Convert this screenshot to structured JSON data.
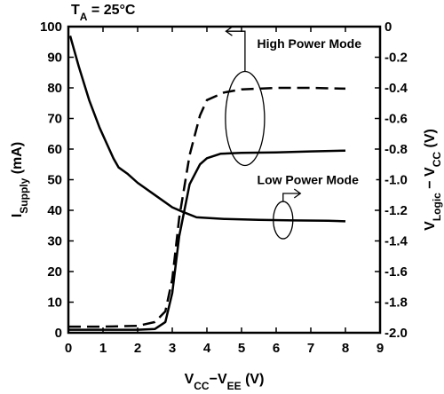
{
  "chart_data": {
    "type": "line",
    "condition": {
      "prefix": "T",
      "sub": "A",
      "suffix": " = 25°C"
    },
    "xlabel": {
      "main": "V",
      "sub1": "CC",
      "mid": "−V",
      "sub2": "EE",
      "unit": " (V)"
    },
    "ylabel_left": {
      "main": "I",
      "sub": "Supply",
      "unit": " (mA)"
    },
    "ylabel_right": {
      "main": "V",
      "sub1": "Logic",
      "mid": " − V",
      "sub2": "CC",
      "unit": " (V)"
    },
    "xlim": [
      0,
      9
    ],
    "ylim_left": [
      0,
      100
    ],
    "ylim_right": [
      -2.0,
      0
    ],
    "x_ticks": [
      "0",
      "1",
      "2",
      "3",
      "4",
      "5",
      "6",
      "7",
      "8",
      "9"
    ],
    "y_left_ticks": [
      "0",
      "10",
      "20",
      "30",
      "40",
      "50",
      "60",
      "70",
      "80",
      "90",
      "100"
    ],
    "y_right_ticks": [
      "-2.0",
      "-1.8",
      "-1.6",
      "-1.4",
      "-1.2",
      "-1.0",
      "-0.8",
      "-0.6",
      "-0.4",
      "-0.2",
      "0"
    ],
    "annotations": {
      "high": "High Power Mode",
      "low": "Low Power Mode"
    },
    "series": [
      {
        "axis": "left",
        "style": "solid",
        "x": [
          0.05,
          0.3,
          0.6,
          0.9,
          1.1,
          1.3,
          1.45,
          1.7,
          2.0,
          2.5,
          3.0,
          3.3,
          3.7,
          4.5,
          5.5,
          6.5,
          7.5,
          8.0
        ],
        "y": [
          97,
          87,
          76,
          67,
          62,
          57,
          54,
          52,
          49,
          45,
          41,
          39.5,
          37.7,
          37.2,
          36.9,
          36.7,
          36.6,
          36.4
        ]
      },
      {
        "axis": "right",
        "style": "dashed",
        "x": [
          0,
          1.0,
          2.0,
          2.5,
          2.8,
          3.0,
          3.2,
          3.5,
          3.8,
          4.0,
          4.5,
          5.0,
          5.5,
          6.0,
          7.0,
          8.0
        ],
        "y": [
          -1.96,
          -1.96,
          -1.955,
          -1.93,
          -1.86,
          -1.65,
          -1.25,
          -0.84,
          -0.58,
          -0.48,
          -0.43,
          -0.41,
          -0.405,
          -0.4,
          -0.4,
          -0.405
        ]
      },
      {
        "axis": "right",
        "style": "solid",
        "x": [
          0,
          1.0,
          2.0,
          2.5,
          2.8,
          3.0,
          3.2,
          3.5,
          3.8,
          4.0,
          4.4,
          5.0,
          6.0,
          7.0,
          8.0
        ],
        "y": [
          -1.98,
          -1.98,
          -1.98,
          -1.975,
          -1.93,
          -1.74,
          -1.37,
          -1.03,
          -0.9,
          -0.86,
          -0.83,
          -0.825,
          -0.822,
          -0.815,
          -0.81
        ]
      }
    ]
  }
}
